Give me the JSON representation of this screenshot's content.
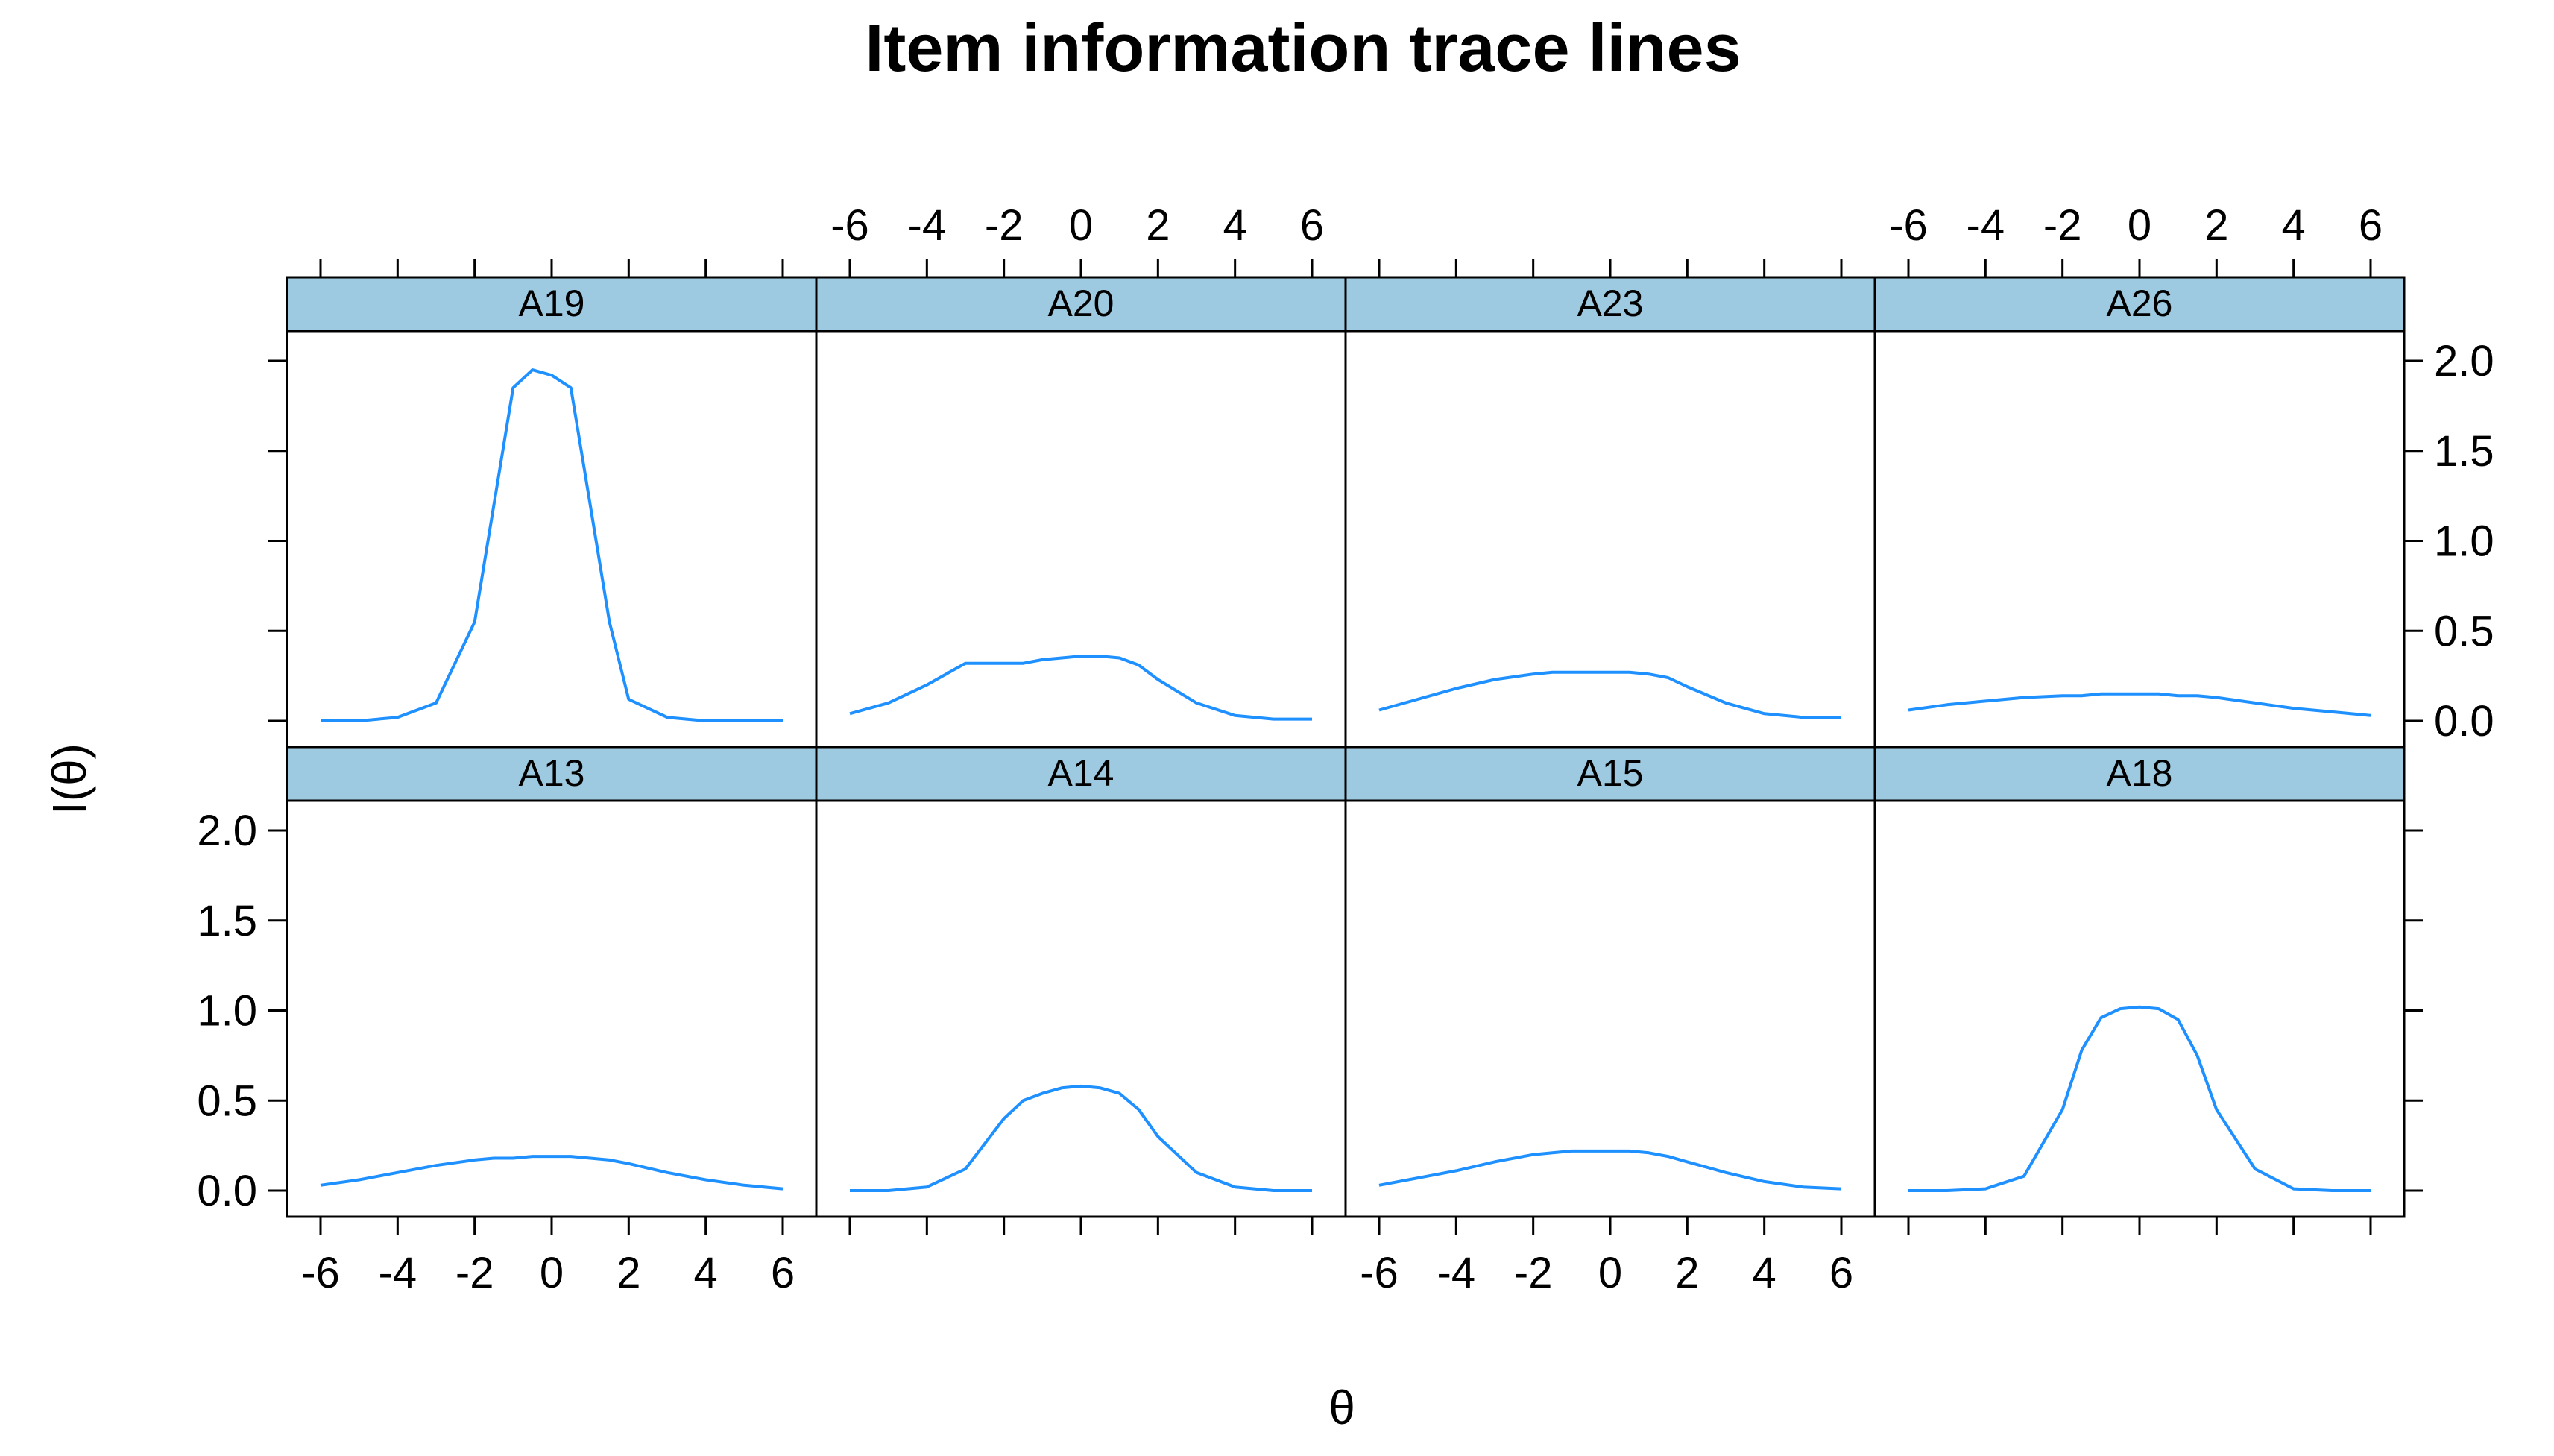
{
  "chart_data": {
    "type": "line",
    "title": "Item information trace lines",
    "xlabel": "θ",
    "ylabel": "I(θ)",
    "xlim": [
      -6,
      6
    ],
    "ylim": [
      0,
      2
    ],
    "x_ticks": [
      "-6",
      "-4",
      "-2",
      "0",
      "2",
      "4",
      "6"
    ],
    "y_ticks": [
      "0.0",
      "0.5",
      "1.0",
      "1.5",
      "2.0"
    ],
    "line_color": "#1E90FF",
    "strip_color": "#9ECAE1",
    "x": [
      -6,
      -5,
      -4,
      -3,
      -2,
      -1.5,
      -1,
      -0.5,
      0,
      0.5,
      1,
      1.5,
      2,
      3,
      4,
      5,
      6
    ],
    "panels": [
      {
        "name": "A19",
        "values": [
          0.0,
          0.0,
          0.02,
          0.1,
          0.55,
          1.2,
          1.85,
          1.95,
          1.92,
          1.85,
          1.2,
          0.55,
          0.12,
          0.02,
          0.0,
          0.0,
          0.0
        ]
      },
      {
        "name": "A20",
        "values": [
          0.04,
          0.1,
          0.2,
          0.32,
          0.32,
          0.32,
          0.34,
          0.35,
          0.36,
          0.36,
          0.35,
          0.31,
          0.23,
          0.1,
          0.03,
          0.01,
          0.01
        ]
      },
      {
        "name": "A23",
        "values": [
          0.06,
          0.12,
          0.18,
          0.23,
          0.26,
          0.27,
          0.27,
          0.27,
          0.27,
          0.27,
          0.26,
          0.24,
          0.19,
          0.1,
          0.04,
          0.02,
          0.02
        ]
      },
      {
        "name": "A26",
        "values": [
          0.06,
          0.09,
          0.11,
          0.13,
          0.14,
          0.14,
          0.15,
          0.15,
          0.15,
          0.15,
          0.14,
          0.14,
          0.13,
          0.1,
          0.07,
          0.05,
          0.03
        ]
      },
      {
        "name": "A13",
        "values": [
          0.03,
          0.06,
          0.1,
          0.14,
          0.17,
          0.18,
          0.18,
          0.19,
          0.19,
          0.19,
          0.18,
          0.17,
          0.15,
          0.1,
          0.06,
          0.03,
          0.01
        ]
      },
      {
        "name": "A14",
        "values": [
          0.0,
          0.0,
          0.02,
          0.12,
          0.4,
          0.5,
          0.54,
          0.57,
          0.58,
          0.57,
          0.54,
          0.45,
          0.3,
          0.1,
          0.02,
          0.0,
          0.0
        ]
      },
      {
        "name": "A15",
        "values": [
          0.03,
          0.07,
          0.11,
          0.16,
          0.2,
          0.21,
          0.22,
          0.22,
          0.22,
          0.22,
          0.21,
          0.19,
          0.16,
          0.1,
          0.05,
          0.02,
          0.01
        ]
      },
      {
        "name": "A18",
        "values": [
          0.0,
          0.0,
          0.01,
          0.08,
          0.45,
          0.78,
          0.96,
          1.01,
          1.02,
          1.01,
          0.95,
          0.75,
          0.45,
          0.12,
          0.01,
          0.0,
          0.0
        ]
      }
    ]
  }
}
